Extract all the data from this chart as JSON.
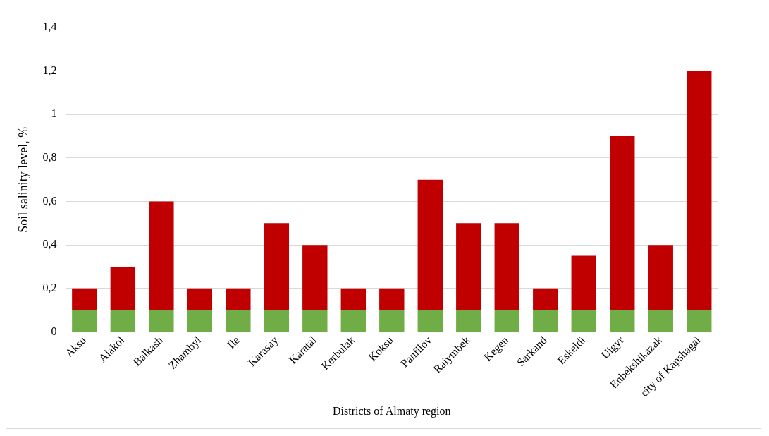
{
  "chart_data": {
    "type": "bar",
    "stacked": true,
    "xlabel": "Districts of Almaty region",
    "ylabel": "Soil salinity level, %",
    "categories": [
      "Aksu",
      "Alakol",
      "Balkash",
      "Zhambyl",
      "Ile",
      "Karasay",
      "Karatal",
      "Kerbulak",
      "Koksu",
      "Panfilov",
      "Raiymbek",
      "Kegen",
      "Sarkand",
      "Eskeldi",
      "Uigyr",
      "Enbekshikazak",
      "city of Kapshagai"
    ],
    "series": [
      {
        "color": "#70ad47",
        "values": [
          0.1,
          0.1,
          0.1,
          0.1,
          0.1,
          0.1,
          0.1,
          0.1,
          0.1,
          0.1,
          0.1,
          0.1,
          0.1,
          0.1,
          0.1,
          0.1,
          0.1
        ]
      },
      {
        "color": "#c00000",
        "values": [
          0.1,
          0.2,
          0.5,
          0.1,
          0.1,
          0.4,
          0.3,
          0.1,
          0.1,
          0.6,
          0.4,
          0.4,
          0.1,
          0.25,
          0.8,
          0.3,
          1.1
        ]
      }
    ],
    "ylim": [
      0,
      1.4
    ],
    "yticks": [
      0,
      {
        "value": 0.2,
        "label": "0,2"
      },
      {
        "value": 0.4,
        "label": "0,4"
      },
      {
        "value": 0.6,
        "label": "0,6"
      },
      {
        "value": 0.8,
        "label": "0,8"
      },
      1,
      {
        "value": 1.2,
        "label": "1,2"
      },
      {
        "value": 1.4,
        "label": "1,4"
      }
    ],
    "grid": "y",
    "legend": false
  }
}
